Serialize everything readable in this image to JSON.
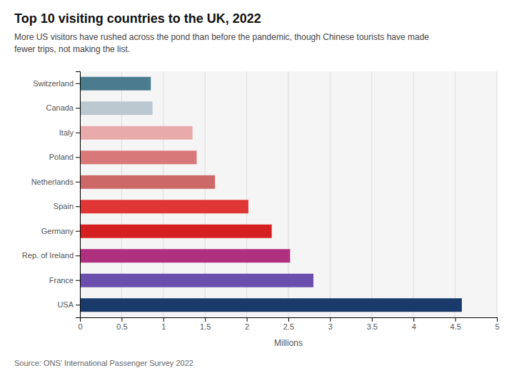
{
  "chart_data": {
    "type": "bar",
    "orientation": "horizontal",
    "title": "Top 10 visiting countries to the UK, 2022",
    "subtitle": "More US visitors have rushed across the pond than before the pandemic, though Chinese tourists have made\nfewer trips, not making the list.",
    "source": "Source: ONS’ International Passenger Survey 2022",
    "xlabel": "Millions",
    "categories": [
      "Switzerland",
      "Canada",
      "Italy",
      "Poland",
      "Netherlands",
      "Spain",
      "Germany",
      "Rep. of Ireland",
      "France",
      "USA"
    ],
    "values": [
      0.85,
      0.87,
      1.35,
      1.4,
      1.62,
      2.02,
      2.3,
      2.52,
      2.8,
      4.58
    ],
    "colors": [
      "#4a7c8e",
      "#bcc8d0",
      "#e8aaaa",
      "#d97878",
      "#cc6868",
      "#e03535",
      "#d42020",
      "#b03080",
      "#6b4fad",
      "#1a3a6b"
    ],
    "xlim": [
      0,
      5
    ],
    "xticks": [
      0,
      0.5,
      1,
      1.5,
      2,
      2.5,
      3,
      3.5,
      4,
      4.5,
      5
    ],
    "grid": true
  }
}
